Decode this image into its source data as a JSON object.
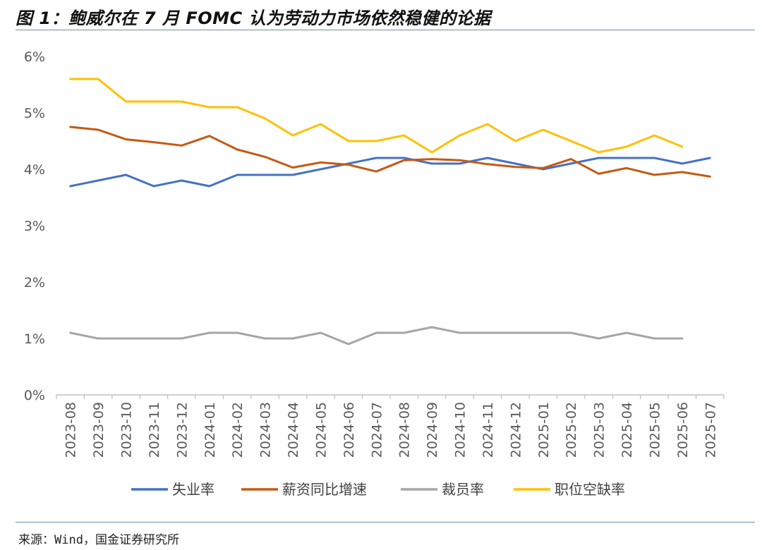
{
  "header": {
    "title": "图 1：鲍威尔在 7 月 FOMC 认为劳动力市场依然稳健的论据"
  },
  "footer": {
    "source": "来源：Wind，国金证券研究所"
  },
  "chart_data": {
    "type": "line",
    "title": "",
    "xlabel": "",
    "ylabel": "",
    "ylim": [
      0,
      6
    ],
    "yticks": [
      "0%",
      "1%",
      "2%",
      "3%",
      "4%",
      "5%",
      "6%"
    ],
    "grid": false,
    "legend_position": "bottom",
    "categories": [
      "2023-08",
      "2023-09",
      "2023-10",
      "2023-11",
      "2023-12",
      "2024-01",
      "2024-02",
      "2024-03",
      "2024-04",
      "2024-05",
      "2024-06",
      "2024-07",
      "2024-08",
      "2024-09",
      "2024-10",
      "2024-11",
      "2024-12",
      "2025-01",
      "2025-02",
      "2025-03",
      "2025-04",
      "2025-05",
      "2025-06",
      "2025-07"
    ],
    "series": [
      {
        "name": "失业率",
        "color": "#4472c4",
        "values": [
          3.7,
          3.8,
          3.9,
          3.7,
          3.8,
          3.7,
          3.9,
          3.9,
          3.9,
          4.0,
          4.1,
          4.2,
          4.2,
          4.1,
          4.1,
          4.2,
          4.1,
          4.0,
          4.1,
          4.2,
          4.2,
          4.2,
          4.1,
          4.2
        ]
      },
      {
        "name": "薪资同比增速",
        "color": "#c55a11",
        "values": [
          4.75,
          4.7,
          4.53,
          4.48,
          4.42,
          4.59,
          4.35,
          4.22,
          4.03,
          4.12,
          4.08,
          3.96,
          4.16,
          4.18,
          4.16,
          4.09,
          4.04,
          4.02,
          4.18,
          3.92,
          4.02,
          3.9,
          3.95,
          3.87
        ]
      },
      {
        "name": "裁员率",
        "color": "#a5a5a5",
        "values": [
          1.1,
          1.0,
          1.0,
          1.0,
          1.0,
          1.1,
          1.1,
          1.0,
          1.0,
          1.1,
          0.9,
          1.1,
          1.1,
          1.2,
          1.1,
          1.1,
          1.1,
          1.1,
          1.1,
          1.0,
          1.1,
          1.0,
          1.0,
          null
        ]
      },
      {
        "name": "职位空缺率",
        "color": "#ffc000",
        "values": [
          5.6,
          5.6,
          5.2,
          5.2,
          5.2,
          5.1,
          5.1,
          4.9,
          4.6,
          4.8,
          4.5,
          4.5,
          4.6,
          4.3,
          4.6,
          4.8,
          4.5,
          4.7,
          4.5,
          4.3,
          4.4,
          4.6,
          4.4,
          null
        ]
      }
    ]
  }
}
